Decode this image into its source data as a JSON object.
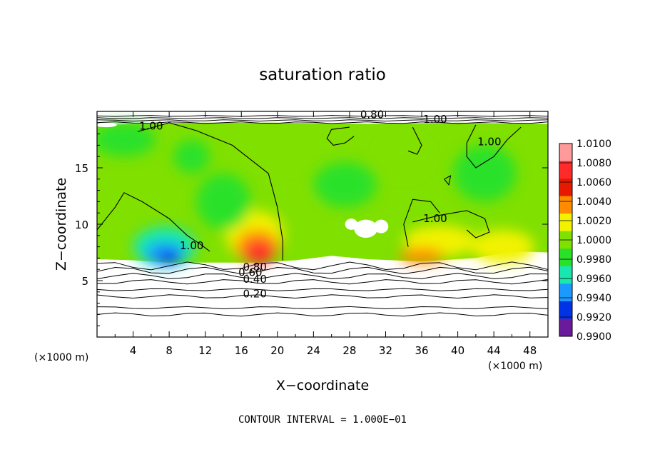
{
  "chart_data": {
    "type": "heatmap",
    "title": "saturation ratio",
    "xlabel": "X−coordinate",
    "ylabel": "Z−coordinate",
    "x_unit_left": "(×1000 m)",
    "x_unit_right": "(×1000 m)",
    "xlim": [
      0,
      50
    ],
    "ylim": [
      0,
      20
    ],
    "xticks": [
      4,
      8,
      12,
      16,
      20,
      24,
      28,
      32,
      36,
      40,
      44,
      48
    ],
    "yticks": [
      5,
      10,
      15
    ],
    "footer": "CONTOUR INTERVAL = 1.000E−01",
    "colorbar": {
      "values": [
        "1.0100",
        "1.0080",
        "1.0060",
        "1.0040",
        "1.0020",
        "1.0000",
        "0.9980",
        "0.9960",
        "0.9940",
        "0.9920",
        "0.9900"
      ],
      "colors": [
        "#ff9a9a",
        "#ff2a2a",
        "#e61a00",
        "#ff8c00",
        "#f2f200",
        "#80e000",
        "#2ae12a",
        "#18e8b0",
        "#1a9aff",
        "#0033e6",
        "#6a1a9a"
      ]
    },
    "contour_labels": [
      {
        "text": "1.00",
        "x": 6,
        "y": 18.4
      },
      {
        "text": "0.80",
        "x": 30.5,
        "y": 19.4
      },
      {
        "text": "1.00",
        "x": 37.5,
        "y": 19.0
      },
      {
        "text": "1.00",
        "x": 43.5,
        "y": 17.0
      },
      {
        "text": "1.00",
        "x": 37.5,
        "y": 10.2
      },
      {
        "text": "1.00",
        "x": 10.5,
        "y": 7.8
      },
      {
        "text": "0.80",
        "x": 17.5,
        "y": 5.9
      },
      {
        "text": "0.60",
        "x": 17.0,
        "y": 5.4
      },
      {
        "text": "0.40",
        "x": 17.5,
        "y": 4.8
      },
      {
        "text": "0.20",
        "x": 17.5,
        "y": 3.5
      }
    ]
  }
}
